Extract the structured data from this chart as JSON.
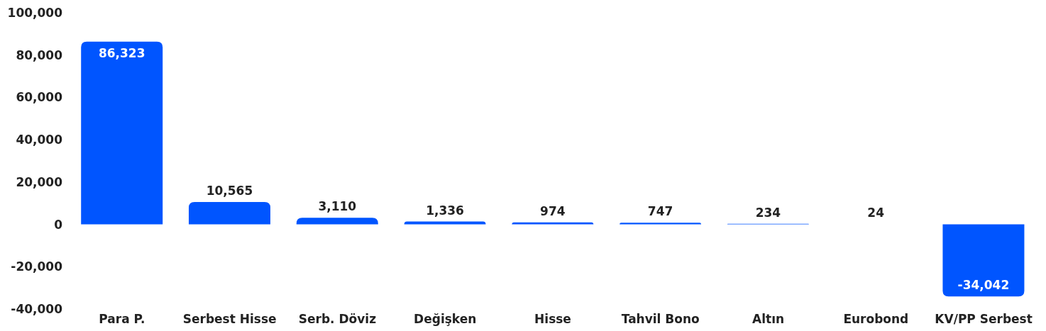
{
  "chart_data": {
    "type": "bar",
    "categories": [
      "Para P.",
      "Serbest Hisse",
      "Serb. Döviz",
      "Değişken",
      "Hisse",
      "Tahvil Bono",
      "Altın",
      "Eurobond",
      "KV/PP Serbest"
    ],
    "values": [
      86323,
      10565,
      3110,
      1336,
      974,
      747,
      234,
      24,
      -34042
    ],
    "value_labels": [
      "86,323",
      "10,565",
      "3,110",
      "1,336",
      "974",
      "747",
      "234",
      "24",
      "-34,042"
    ],
    "color": "#0055ff",
    "ylim": [
      -40000,
      100000
    ],
    "yticks": [
      {
        "value": -40000,
        "label": "-40,000"
      },
      {
        "value": -20000,
        "label": "-20,000"
      },
      0,
      {
        "value": 20000,
        "label": "20,000"
      },
      {
        "value": 40000,
        "label": "40,000"
      },
      {
        "value": 60000,
        "label": "60,000"
      },
      {
        "value": 80000,
        "label": "80,000"
      },
      {
        "value": 100000,
        "label": "100,000"
      }
    ],
    "grid": false,
    "legend": false
  }
}
